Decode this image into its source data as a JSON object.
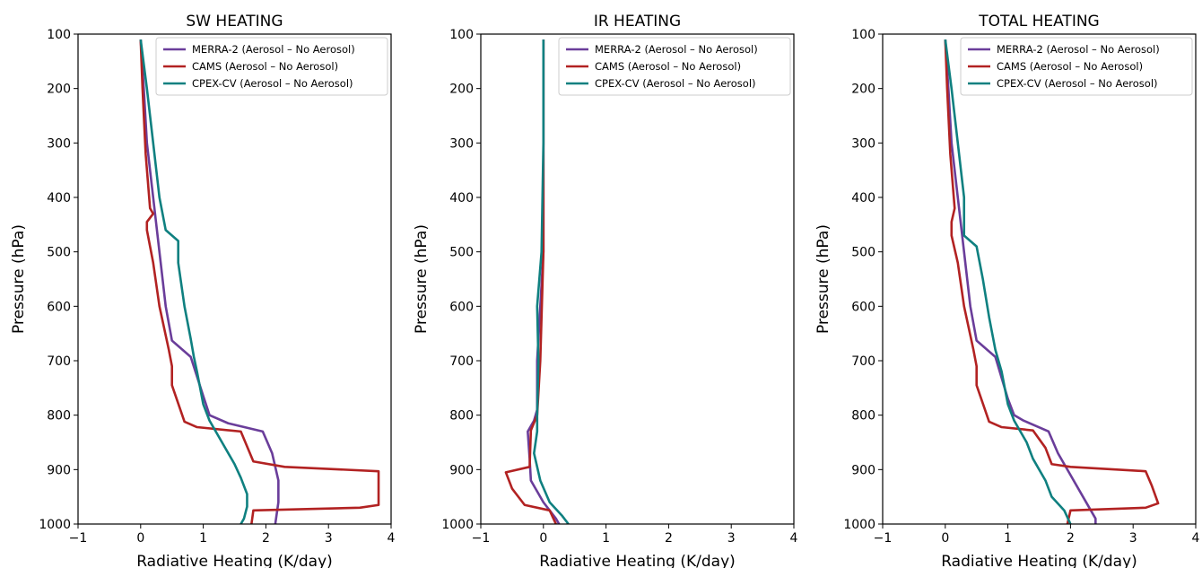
{
  "colors": {
    "MERRA-2": "#6a3d9a",
    "CAMS": "#b22222",
    "CPEX-CV": "#0f8080"
  },
  "chart_data": [
    {
      "type": "line",
      "title": "SW HEATING",
      "xlabel": "Radiative Heating (K/day)",
      "ylabel": "Pressure (hPa)",
      "xlim": [
        -1,
        4
      ],
      "ylim": [
        1000,
        100
      ],
      "y_inverted": true,
      "xticks": [
        "−1",
        "0",
        "1",
        "2",
        "3",
        "4"
      ],
      "yticks": [
        "100",
        "200",
        "300",
        "400",
        "500",
        "600",
        "700",
        "800",
        "900",
        "1000"
      ],
      "legend_position": "top-right",
      "series": [
        {
          "name": "MERRA-2 (Aerosol – No Aerosol)",
          "color": "#6a3d9a",
          "points": [
            [
              0.0,
              110
            ],
            [
              0.05,
              200
            ],
            [
              0.1,
              300
            ],
            [
              0.2,
              400
            ],
            [
              0.3,
              500
            ],
            [
              0.4,
              600
            ],
            [
              0.5,
              663
            ],
            [
              0.8,
              693
            ],
            [
              1.0,
              765
            ],
            [
              1.1,
              800
            ],
            [
              1.4,
              815
            ],
            [
              1.95,
              830
            ],
            [
              2.1,
              870
            ],
            [
              2.2,
              920
            ],
            [
              2.2,
              960
            ],
            [
              2.15,
              1000
            ]
          ]
        },
        {
          "name": "CAMS (Aerosol – No Aerosol)",
          "color": "#b22222",
          "points": [
            [
              0.0,
              110
            ],
            [
              0.03,
              200
            ],
            [
              0.08,
              320
            ],
            [
              0.15,
              420
            ],
            [
              0.2,
              430
            ],
            [
              0.1,
              445
            ],
            [
              0.1,
              460
            ],
            [
              0.2,
              520
            ],
            [
              0.3,
              600
            ],
            [
              0.45,
              680
            ],
            [
              0.5,
              710
            ],
            [
              0.5,
              745
            ],
            [
              0.7,
              812
            ],
            [
              0.9,
              822
            ],
            [
              1.6,
              830
            ],
            [
              1.8,
              885
            ],
            [
              2.3,
              895
            ],
            [
              3.8,
              903
            ],
            [
              3.8,
              945
            ],
            [
              3.8,
              965
            ],
            [
              3.5,
              970
            ],
            [
              1.8,
              975
            ],
            [
              1.77,
              1000
            ]
          ]
        },
        {
          "name": "CPEX-CV (Aerosol – No Aerosol)",
          "color": "#0f8080",
          "points": [
            [
              0.0,
              110
            ],
            [
              0.1,
              200
            ],
            [
              0.2,
              300
            ],
            [
              0.3,
              400
            ],
            [
              0.4,
              460
            ],
            [
              0.6,
              480
            ],
            [
              0.6,
              520
            ],
            [
              0.7,
              600
            ],
            [
              0.8,
              660
            ],
            [
              0.85,
              693
            ],
            [
              0.9,
              720
            ],
            [
              1.0,
              780
            ],
            [
              1.1,
              810
            ],
            [
              1.3,
              850
            ],
            [
              1.5,
              890
            ],
            [
              1.6,
              915
            ],
            [
              1.7,
              945
            ],
            [
              1.7,
              968
            ],
            [
              1.65,
              990
            ],
            [
              1.6,
              1000
            ]
          ]
        }
      ]
    },
    {
      "type": "line",
      "title": "IR HEATING",
      "xlabel": "Radiative Heating (K/day)",
      "ylabel": "Pressure (hPa)",
      "xlim": [
        -1,
        4
      ],
      "ylim": [
        1000,
        100
      ],
      "y_inverted": true,
      "xticks": [
        "−1",
        "0",
        "1",
        "2",
        "3",
        "4"
      ],
      "yticks": [
        "100",
        "200",
        "300",
        "400",
        "500",
        "600",
        "700",
        "800",
        "900",
        "1000"
      ],
      "legend_position": "top-right",
      "series": [
        {
          "name": "MERRA-2 (Aerosol – No Aerosol)",
          "color": "#6a3d9a",
          "points": [
            [
              0.0,
              110
            ],
            [
              0.0,
              300
            ],
            [
              0.0,
              500
            ],
            [
              -0.05,
              600
            ],
            [
              -0.1,
              700
            ],
            [
              -0.1,
              790
            ],
            [
              -0.15,
              810
            ],
            [
              -0.25,
              830
            ],
            [
              -0.22,
              880
            ],
            [
              -0.2,
              920
            ],
            [
              0.0,
              960
            ],
            [
              0.2,
              990
            ],
            [
              0.25,
              1000
            ]
          ]
        },
        {
          "name": "CAMS (Aerosol – No Aerosol)",
          "color": "#b22222",
          "points": [
            [
              0.0,
              110
            ],
            [
              0.0,
              300
            ],
            [
              0.0,
              500
            ],
            [
              -0.05,
              700
            ],
            [
              -0.1,
              800
            ],
            [
              -0.2,
              828
            ],
            [
              -0.22,
              895
            ],
            [
              -0.6,
              905
            ],
            [
              -0.5,
              935
            ],
            [
              -0.3,
              965
            ],
            [
              0.1,
              975
            ],
            [
              0.2,
              1000
            ]
          ]
        },
        {
          "name": "CPEX-CV (Aerosol – No Aerosol)",
          "color": "#0f8080",
          "points": [
            [
              0.0,
              110
            ],
            [
              0.0,
              300
            ],
            [
              -0.03,
              500
            ],
            [
              -0.1,
              600
            ],
            [
              -0.08,
              700
            ],
            [
              -0.1,
              800
            ],
            [
              -0.1,
              830
            ],
            [
              -0.15,
              870
            ],
            [
              -0.05,
              920
            ],
            [
              0.1,
              960
            ],
            [
              0.3,
              985
            ],
            [
              0.4,
              1000
            ]
          ]
        }
      ]
    },
    {
      "type": "line",
      "title": "TOTAL HEATING",
      "xlabel": "Radiative Heating (K/day)",
      "ylabel": "Pressure (hPa)",
      "xlim": [
        -1,
        4
      ],
      "ylim": [
        1000,
        100
      ],
      "y_inverted": true,
      "xticks": [
        "−1",
        "0",
        "1",
        "2",
        "3",
        "4"
      ],
      "yticks": [
        "100",
        "200",
        "300",
        "400",
        "500",
        "600",
        "700",
        "800",
        "900",
        "1000"
      ],
      "legend_position": "top-right",
      "series": [
        {
          "name": "MERRA-2 (Aerosol – No Aerosol)",
          "color": "#6a3d9a",
          "points": [
            [
              0.0,
              110
            ],
            [
              0.05,
              200
            ],
            [
              0.1,
              300
            ],
            [
              0.2,
              400
            ],
            [
              0.3,
              500
            ],
            [
              0.4,
              600
            ],
            [
              0.5,
              663
            ],
            [
              0.8,
              693
            ],
            [
              1.0,
              770
            ],
            [
              1.1,
              800
            ],
            [
              1.25,
              810
            ],
            [
              1.65,
              830
            ],
            [
              1.8,
              870
            ],
            [
              2.0,
              910
            ],
            [
              2.2,
              950
            ],
            [
              2.4,
              990
            ],
            [
              2.4,
              1000
            ]
          ]
        },
        {
          "name": "CAMS (Aerosol – No Aerosol)",
          "color": "#b22222",
          "points": [
            [
              0.0,
              110
            ],
            [
              0.03,
              200
            ],
            [
              0.08,
              320
            ],
            [
              0.15,
              420
            ],
            [
              0.1,
              445
            ],
            [
              0.1,
              470
            ],
            [
              0.2,
              520
            ],
            [
              0.3,
              600
            ],
            [
              0.45,
              680
            ],
            [
              0.5,
              710
            ],
            [
              0.5,
              745
            ],
            [
              0.7,
              812
            ],
            [
              0.9,
              822
            ],
            [
              1.4,
              828
            ],
            [
              1.6,
              860
            ],
            [
              1.7,
              890
            ],
            [
              2.0,
              895
            ],
            [
              3.2,
              903
            ],
            [
              3.3,
              930
            ],
            [
              3.4,
              962
            ],
            [
              3.2,
              970
            ],
            [
              2.0,
              975
            ],
            [
              1.95,
              1000
            ]
          ]
        },
        {
          "name": "CPEX-CV (Aerosol – No Aerosol)",
          "color": "#0f8080",
          "points": [
            [
              0.0,
              110
            ],
            [
              0.1,
              200
            ],
            [
              0.2,
              300
            ],
            [
              0.3,
              400
            ],
            [
              0.3,
              440
            ],
            [
              0.3,
              470
            ],
            [
              0.5,
              490
            ],
            [
              0.6,
              550
            ],
            [
              0.7,
              620
            ],
            [
              0.8,
              680
            ],
            [
              0.9,
              720
            ],
            [
              1.0,
              780
            ],
            [
              1.1,
              810
            ],
            [
              1.3,
              850
            ],
            [
              1.4,
              880
            ],
            [
              1.6,
              920
            ],
            [
              1.7,
              950
            ],
            [
              1.9,
              975
            ],
            [
              2.0,
              1000
            ]
          ]
        }
      ]
    }
  ]
}
